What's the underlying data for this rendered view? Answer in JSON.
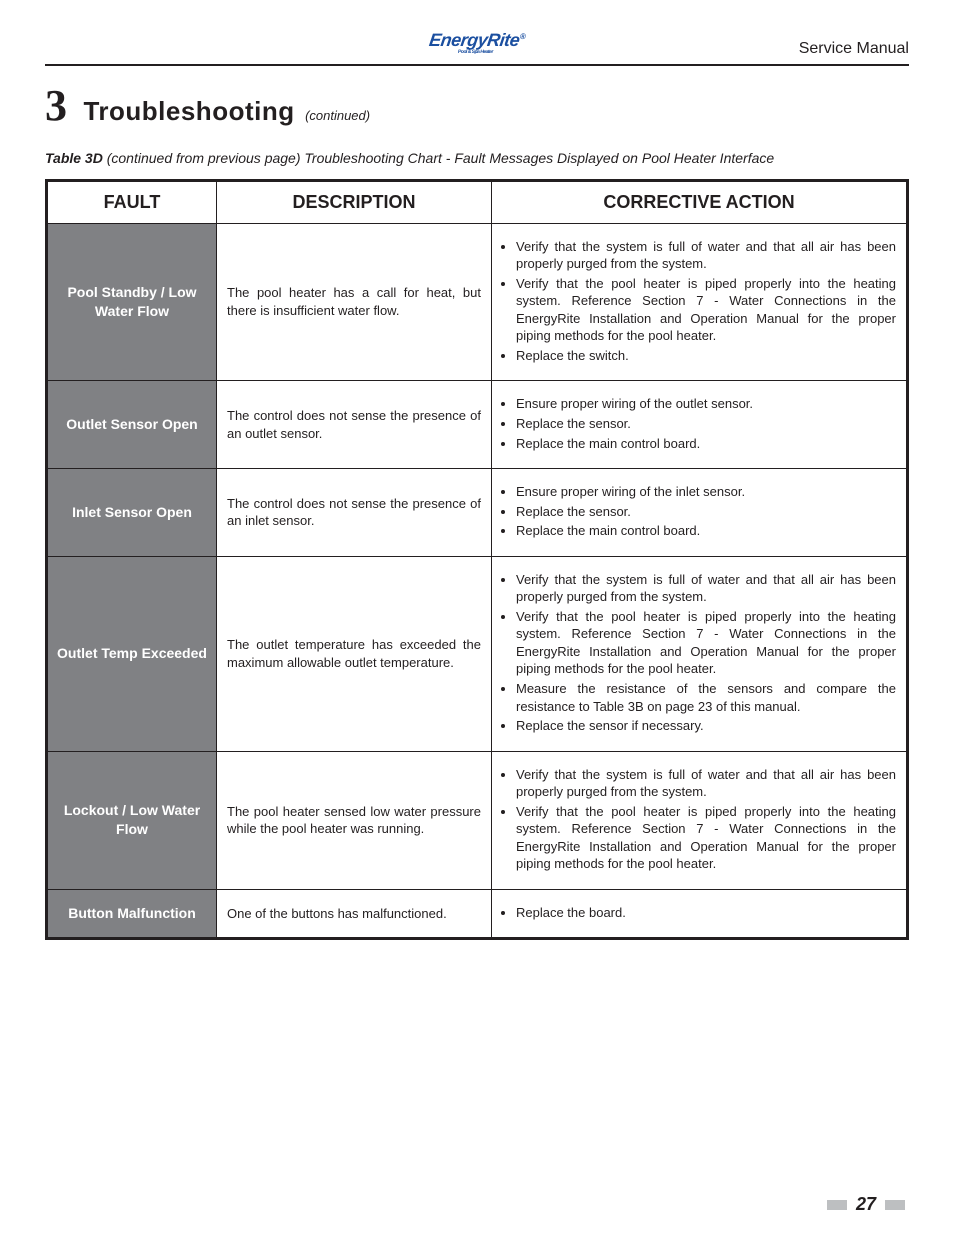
{
  "header": {
    "logo_text": "EnergyRite",
    "logo_sub": "Pool & Spa Heater",
    "doc_type": "Service Manual",
    "underline_color": "#231f20"
  },
  "section": {
    "number": "3",
    "title": "Troubleshooting",
    "continued": "(continued)"
  },
  "table_caption_lead": "Table 3D",
  "table_caption_rest": " (continued from previous page) Troubleshooting Chart - Fault Messages Displayed on Pool Heater Interface",
  "columns": {
    "fault": "FAULT",
    "description": "DESCRIPTION",
    "action": "CORRECTIVE ACTION"
  },
  "rows": [
    {
      "fault": "Pool Standby / Low Water Flow",
      "description": "The pool heater has a call for heat, but there is insufficient water flow.",
      "actions": [
        "Verify that the system is full of water and that all air has been properly purged from the system.",
        "Verify that the pool heater is piped properly into the heating system.  Reference Section 7 - Water Connections in the EnergyRite Installation and Operation Manual for the proper piping methods for the pool heater.",
        "Replace the switch."
      ],
      "desc_valign": "top"
    },
    {
      "fault": "Outlet Sensor Open",
      "description": "The control does not sense the presence of an outlet sensor.",
      "actions": [
        "Ensure proper wiring of the outlet sensor.",
        "Replace the sensor.",
        "Replace the main control board."
      ],
      "desc_valign": "middle"
    },
    {
      "fault": "Inlet Sensor Open",
      "description": "The control does not sense the presence of an inlet sensor.",
      "actions": [
        "Ensure proper wiring of the inlet sensor.",
        "Replace the sensor.",
        "Replace the main control board."
      ],
      "desc_valign": "middle"
    },
    {
      "fault": "Outlet Temp Exceeded",
      "description": "The outlet temperature has exceeded the maximum allowable outlet temperature.",
      "actions": [
        "Verify that the system is full of water and that all air has been properly purged from the system.",
        "Verify that the pool heater is piped properly into the heating system.  Reference Section 7 - Water Connections in the EnergyRite Installation and Operation Manual for the proper piping methods for the pool heater.",
        "Measure the resistance of the sensors and compare the resistance to Table 3B on page 23 of this manual.",
        "Replace the sensor if necessary."
      ],
      "desc_valign": "middle"
    },
    {
      "fault": "Lockout / Low Water Flow",
      "description": "The pool heater sensed low water pressure while the pool heater  was running.",
      "actions": [
        "Verify that the system is full of water and that all air has been properly purged from the system.",
        "Verify that the pool heater is piped properly into the heating system.  Reference Section 7 - Water Connections in the EnergyRite Installation and Operation Manual for the proper piping methods for the pool heater."
      ],
      "desc_valign": "middle"
    },
    {
      "fault": "Button Malfunction",
      "description": "One of the buttons has malfunctioned.",
      "actions": [
        "Replace the board."
      ],
      "desc_valign": "middle"
    }
  ],
  "styling": {
    "table_border_color": "#231f20",
    "fault_bg": "#808184",
    "fault_fg": "#ffffff",
    "body_font_size": 13,
    "header_font_size": 18,
    "logo_color": "#1b4fa0",
    "page_box_color": "#bdbfc1"
  },
  "page_number": "27"
}
